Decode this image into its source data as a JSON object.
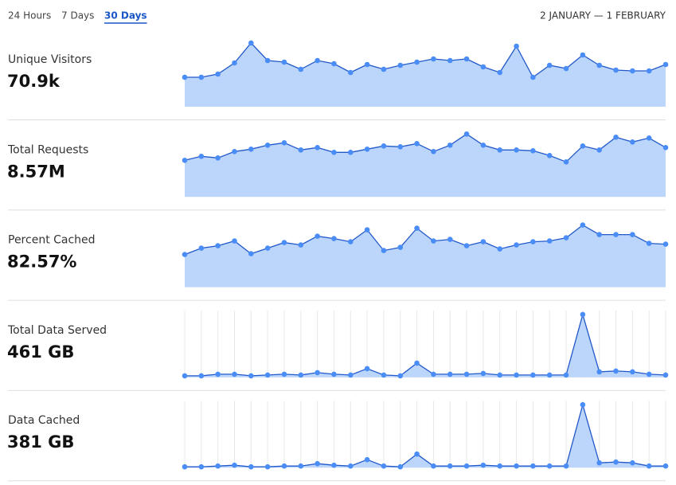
{
  "tabs": [
    "24 Hours",
    "7 Days",
    "30 Days"
  ],
  "selected_tab": 2,
  "date_range": "2 JANUARY — 1 FEBRUARY",
  "chart_data": [
    {
      "type": "area",
      "title": "Unique Visitors",
      "summary": "70.9k",
      "color": "#4a8df7",
      "grid": false,
      "ylim": [
        0,
        84
      ],
      "values": [
        37,
        37,
        41,
        55,
        80,
        58,
        56,
        47,
        58,
        54,
        43,
        53,
        47,
        52,
        56,
        60,
        58,
        60,
        50,
        43,
        76,
        37,
        52,
        48,
        65,
        52,
        46,
        45,
        45,
        53
      ]
    },
    {
      "type": "area",
      "title": "Total Requests",
      "summary": "8.57M",
      "color": "#4a8df7",
      "grid": false,
      "ylim": [
        0,
        84
      ],
      "values": [
        46,
        51,
        49,
        57,
        60,
        65,
        68,
        59,
        62,
        56,
        56,
        60,
        64,
        63,
        67,
        57,
        65,
        79,
        65,
        59,
        59,
        58,
        52,
        44,
        64,
        59,
        75,
        69,
        74,
        62
      ]
    },
    {
      "type": "area",
      "title": "Percent Cached",
      "summary": "82.57%",
      "color": "#4a8df7",
      "grid": false,
      "ylim": [
        0,
        84
      ],
      "values": [
        41,
        49,
        52,
        58,
        42,
        49,
        56,
        53,
        64,
        61,
        57,
        72,
        46,
        50,
        74,
        58,
        60,
        52,
        57,
        48,
        53,
        57,
        58,
        62,
        78,
        66,
        66,
        66,
        55,
        54
      ]
    },
    {
      "type": "area",
      "title": "Total Data Served",
      "summary": "461 GB",
      "color": "#4a8df7",
      "grid": true,
      "ylim": [
        0,
        84
      ],
      "values": [
        2,
        2,
        4,
        4,
        2,
        3,
        4,
        3,
        6,
        4,
        3,
        11,
        3,
        2,
        18,
        4,
        4,
        4,
        5,
        3,
        3,
        3,
        3,
        3,
        79,
        7,
        8,
        7,
        4,
        3
      ]
    },
    {
      "type": "area",
      "title": "Data Cached",
      "summary": "381 GB",
      "color": "#4a8df7",
      "grid": true,
      "ylim": [
        0,
        84
      ],
      "values": [
        1,
        1,
        2,
        3,
        1,
        1,
        2,
        2,
        5,
        3,
        2,
        10,
        2,
        1,
        17,
        2,
        2,
        2,
        3,
        2,
        2,
        2,
        2,
        2,
        79,
        6,
        7,
        6,
        2,
        2
      ]
    }
  ]
}
